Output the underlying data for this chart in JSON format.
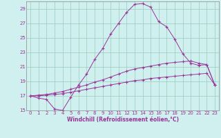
{
  "xlabel": "Windchill (Refroidissement éolien,°C)",
  "background_color": "#cff0ee",
  "line_color": "#993399",
  "grid_color": "#99ccbb",
  "xlim": [
    -0.5,
    23.5
  ],
  "ylim": [
    15,
    30
  ],
  "yticks": [
    15,
    17,
    19,
    21,
    23,
    25,
    27,
    29
  ],
  "xticks": [
    0,
    1,
    2,
    3,
    4,
    5,
    6,
    7,
    8,
    9,
    10,
    11,
    12,
    13,
    14,
    15,
    16,
    17,
    18,
    19,
    20,
    21,
    22,
    23
  ],
  "line1_x": [
    0,
    1,
    2,
    3,
    4,
    5,
    6,
    7,
    8,
    9,
    10,
    11,
    12,
    13,
    14,
    15,
    16,
    17,
    18,
    19,
    20,
    21,
    22,
    23
  ],
  "line1_y": [
    17.0,
    16.7,
    16.5,
    15.2,
    15.0,
    16.8,
    18.5,
    20.0,
    22.0,
    23.5,
    25.5,
    27.0,
    28.5,
    29.6,
    29.7,
    29.2,
    27.2,
    26.5,
    24.8,
    22.8,
    21.5,
    21.2,
    21.3,
    18.5
  ],
  "line2_x": [
    0,
    1,
    2,
    3,
    4,
    5,
    6,
    7,
    8,
    9,
    10,
    11,
    12,
    13,
    14,
    15,
    16,
    17,
    18,
    19,
    20,
    21,
    22,
    23
  ],
  "line2_y": [
    17.0,
    17.1,
    17.2,
    17.4,
    17.6,
    17.9,
    18.2,
    18.5,
    18.9,
    19.2,
    19.6,
    20.0,
    20.4,
    20.7,
    20.9,
    21.1,
    21.3,
    21.5,
    21.6,
    21.7,
    21.8,
    21.5,
    21.3,
    18.5
  ],
  "line3_x": [
    0,
    1,
    2,
    3,
    4,
    5,
    6,
    7,
    8,
    9,
    10,
    11,
    12,
    13,
    14,
    15,
    16,
    17,
    18,
    19,
    20,
    21,
    22,
    23
  ],
  "line3_y": [
    17.0,
    17.0,
    17.1,
    17.2,
    17.3,
    17.5,
    17.7,
    17.9,
    18.1,
    18.3,
    18.5,
    18.7,
    18.9,
    19.1,
    19.2,
    19.4,
    19.5,
    19.6,
    19.7,
    19.8,
    19.9,
    20.0,
    20.1,
    18.5
  ]
}
